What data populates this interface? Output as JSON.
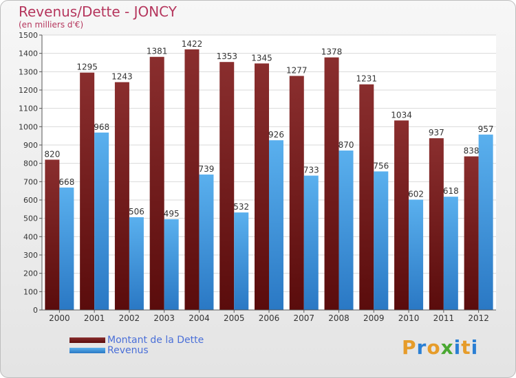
{
  "title": "Revenus/Dette - JONCY",
  "subtitle": "(en milliers d'€)",
  "logo": {
    "text": "Proxiti",
    "letters": [
      "P",
      "r",
      "o",
      "x",
      "i",
      "t",
      "i"
    ],
    "colors": [
      "#e69c2a",
      "#2a7fd4",
      "#e69c2a",
      "#4aa832",
      "#2a7fd4",
      "#e69c2a",
      "#2a7fd4"
    ]
  },
  "legend": {
    "position": "bottom-left"
  },
  "chart_data": {
    "type": "bar",
    "categories": [
      "2000",
      "2001",
      "2002",
      "2003",
      "2004",
      "2005",
      "2006",
      "2007",
      "2008",
      "2009",
      "2010",
      "2011",
      "2012"
    ],
    "series": [
      {
        "name": "Montant de la Dette",
        "color": "#7a1a1a",
        "values": [
          820,
          1295,
          1243,
          1381,
          1422,
          1353,
          1345,
          1277,
          1378,
          1231,
          1034,
          937,
          838
        ]
      },
      {
        "name": "Revenus",
        "color": "#4a9fe0",
        "values": [
          668,
          968,
          506,
          495,
          739,
          532,
          926,
          733,
          870,
          756,
          602,
          618,
          957
        ]
      }
    ],
    "ylim": [
      0,
      1500
    ],
    "yticks": [
      "0",
      "100",
      "200",
      "300",
      "400",
      "500",
      "600",
      "700",
      "800",
      "900",
      "1000",
      "1100",
      "1200",
      "1300",
      "1400",
      "1500"
    ],
    "grid": true
  }
}
